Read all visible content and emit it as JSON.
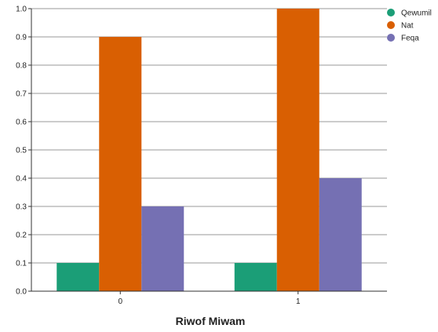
{
  "chart_data": {
    "type": "bar",
    "categories": [
      "0",
      "1"
    ],
    "series": [
      {
        "name": "Qewumil",
        "values": [
          0.1,
          0.1
        ],
        "color": "#1b9e77"
      },
      {
        "name": "Nat",
        "values": [
          0.9,
          1.0
        ],
        "color": "#d95f02"
      },
      {
        "name": "Feqa",
        "values": [
          0.3,
          0.4
        ],
        "color": "#7570b3"
      }
    ],
    "xlabel": "Riwof Miwam",
    "ylabel": "",
    "ylim": [
      0,
      1.0
    ],
    "yticks": [
      "0.0",
      "0.1",
      "0.2",
      "0.3",
      "0.4",
      "0.5",
      "0.6",
      "0.7",
      "0.8",
      "0.9",
      "1.0"
    ],
    "grid": true,
    "legend_position": "top-right"
  }
}
